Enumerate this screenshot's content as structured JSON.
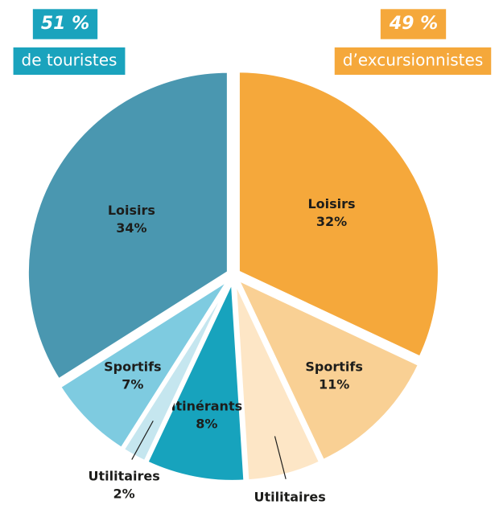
{
  "chart_data": {
    "type": "pie",
    "groups": [
      {
        "label": "d’excursionnistes",
        "value": 49,
        "value_label": "49 %",
        "color": "#f5a83b",
        "slices": [
          {
            "name": "Loisirs",
            "value": 32,
            "value_label": "32%",
            "color": "#f5a83b"
          },
          {
            "name": "Sportifs",
            "value": 11,
            "value_label": "11%",
            "color": "#f9d094"
          },
          {
            "name": "Utilitaires",
            "value": 6,
            "value_label": "6%",
            "color": "#fde6c6"
          }
        ]
      },
      {
        "label": "de touristes",
        "value": 51,
        "value_label": "51 %",
        "color": "#1aa3bd",
        "slices": [
          {
            "name": "Itinérants",
            "value": 8,
            "value_label": "8%",
            "color": "#17a3bd"
          },
          {
            "name": "Utilitaires",
            "value": 2,
            "value_label": "2%",
            "color": "#c5e6ef"
          },
          {
            "name": "Sportifs",
            "value": 7,
            "value_label": "7%",
            "color": "#7ecbe0"
          },
          {
            "name": "Loisirs",
            "value": 34,
            "value_label": "34%",
            "color": "#4a97b0"
          }
        ]
      }
    ]
  }
}
